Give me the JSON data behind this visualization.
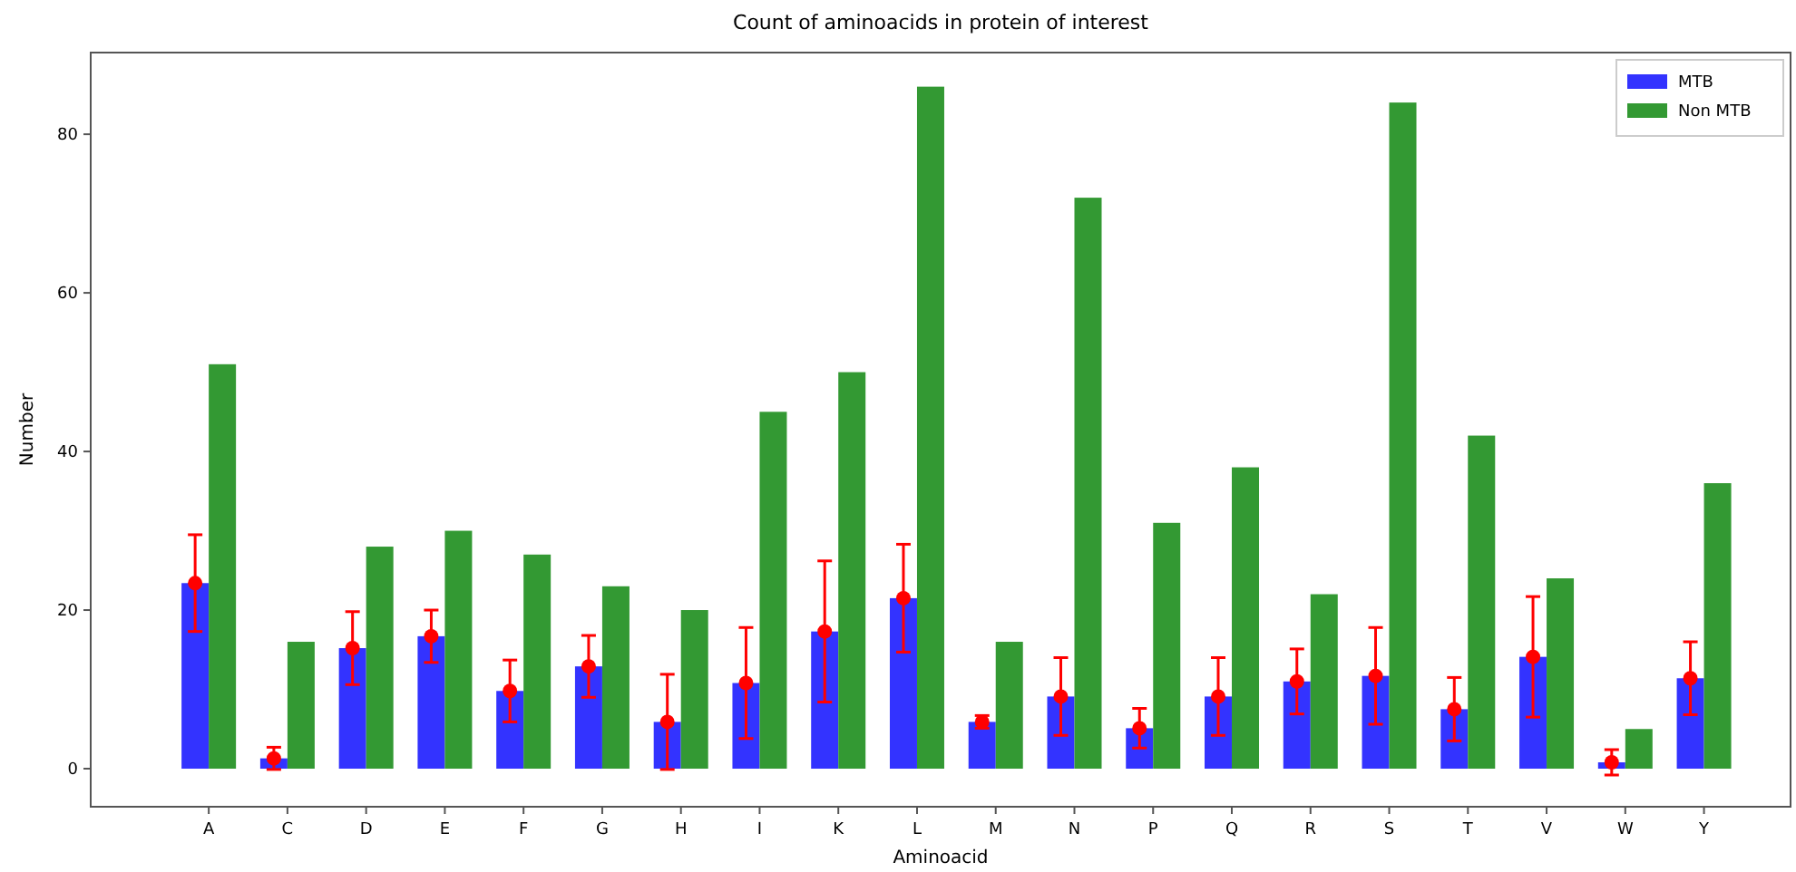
{
  "chart_data": {
    "type": "bar",
    "title": "Count of aminoacids in protein of interest",
    "xlabel": "Aminoacid",
    "ylabel": "Number",
    "categories": [
      "A",
      "C",
      "D",
      "E",
      "F",
      "G",
      "H",
      "I",
      "K",
      "L",
      "M",
      "N",
      "P",
      "Q",
      "R",
      "S",
      "T",
      "V",
      "W",
      "Y"
    ],
    "series": [
      {
        "name": "MTB",
        "color": "#3333ff",
        "values": [
          23.4,
          1.3,
          15.2,
          16.7,
          9.8,
          12.9,
          5.9,
          10.8,
          17.3,
          21.5,
          5.9,
          9.1,
          5.1,
          9.1,
          11.0,
          11.7,
          7.5,
          14.1,
          0.8,
          11.4
        ]
      },
      {
        "name": "Non MTB",
        "color": "#339933",
        "values": [
          51,
          16,
          28,
          30,
          27,
          23,
          20,
          45,
          50,
          86,
          16,
          72,
          31,
          38,
          22,
          84,
          42,
          24,
          5,
          36
        ]
      },
      {
        "type": "scatter",
        "color": "#ff0000",
        "marker": "circle",
        "x": [
          "A",
          "C",
          "D",
          "E",
          "F",
          "G",
          "H",
          "I",
          "K",
          "L",
          "M",
          "N",
          "P",
          "Q",
          "R",
          "S",
          "T",
          "V",
          "W",
          "Y"
        ],
        "values": [
          23.4,
          1.3,
          15.2,
          16.7,
          9.8,
          12.9,
          5.9,
          10.8,
          17.3,
          21.5,
          5.9,
          9.1,
          5.1,
          9.1,
          11.0,
          11.7,
          7.5,
          14.1,
          0.8,
          11.4
        ],
        "errors": [
          6.1,
          1.4,
          4.6,
          3.3,
          3.9,
          3.9,
          6.0,
          7.0,
          8.9,
          6.8,
          0.8,
          4.9,
          2.5,
          4.9,
          4.1,
          6.1,
          4.0,
          7.6,
          1.6,
          4.6
        ]
      }
    ],
    "ylim": [
      -4.8,
      90.3
    ],
    "yticks": [
      0,
      20,
      40,
      60,
      80
    ],
    "grid": false,
    "legend": "top right"
  }
}
